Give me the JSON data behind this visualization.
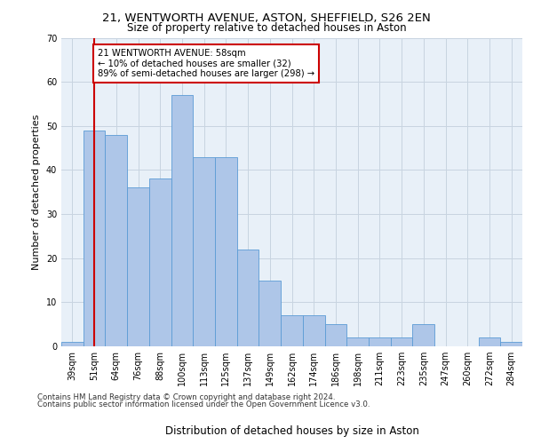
{
  "title1": "21, WENTWORTH AVENUE, ASTON, SHEFFIELD, S26 2EN",
  "title2": "Size of property relative to detached houses in Aston",
  "xlabel": "Distribution of detached houses by size in Aston",
  "ylabel": "Number of detached properties",
  "categories": [
    "39sqm",
    "51sqm",
    "64sqm",
    "76sqm",
    "88sqm",
    "100sqm",
    "113sqm",
    "125sqm",
    "137sqm",
    "149sqm",
    "162sqm",
    "174sqm",
    "186sqm",
    "198sqm",
    "211sqm",
    "223sqm",
    "235sqm",
    "247sqm",
    "260sqm",
    "272sqm",
    "284sqm"
  ],
  "values": [
    1,
    49,
    48,
    36,
    38,
    57,
    43,
    43,
    22,
    15,
    7,
    7,
    5,
    2,
    2,
    2,
    5,
    0,
    0,
    2,
    1
  ],
  "bar_color": "#aec6e8",
  "bar_edge_color": "#5b9bd5",
  "vline_x": 1,
  "vline_color": "#cc0000",
  "annotation_text": "21 WENTWORTH AVENUE: 58sqm\n← 10% of detached houses are smaller (32)\n89% of semi-detached houses are larger (298) →",
  "annotation_box_color": "#ffffff",
  "annotation_box_edge": "#cc0000",
  "ylim": [
    0,
    70
  ],
  "yticks": [
    0,
    10,
    20,
    30,
    40,
    50,
    60,
    70
  ],
  "footer1": "Contains HM Land Registry data © Crown copyright and database right 2024.",
  "footer2": "Contains public sector information licensed under the Open Government Licence v3.0.",
  "plot_bg_color": "#e8f0f8"
}
